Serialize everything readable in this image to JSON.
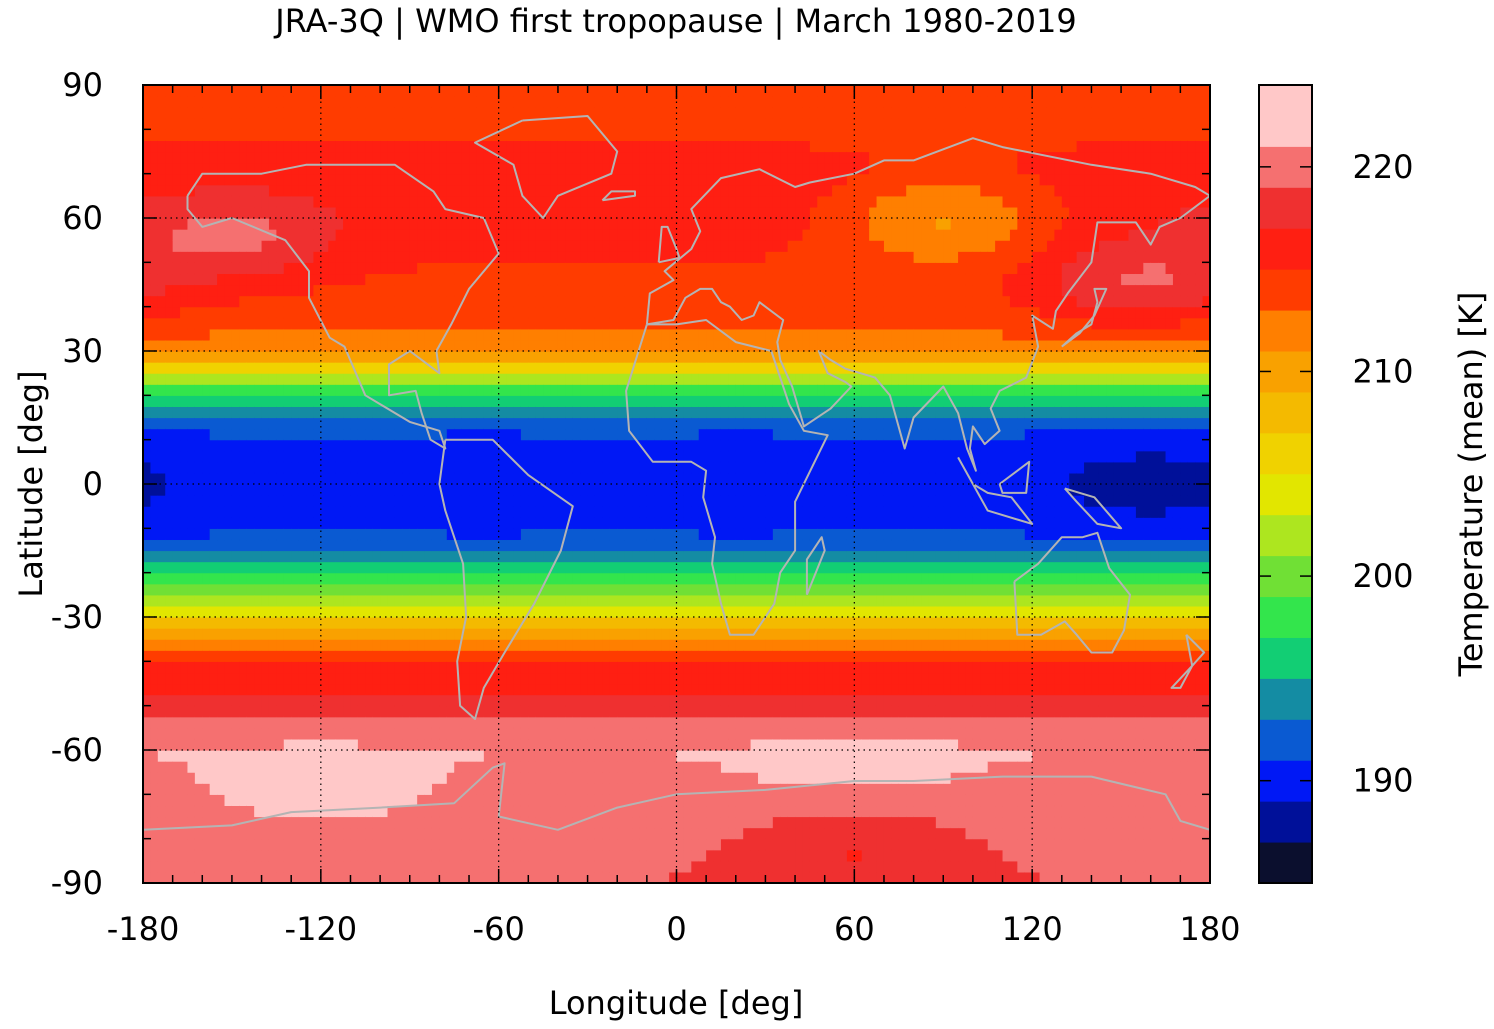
{
  "chart_data": {
    "type": "heatmap",
    "title": "JRA-3Q | WMO first tropopause | March 1980-2019",
    "xlabel": "Longitude [deg]",
    "ylabel": "Latitude [deg]",
    "colorbar_label": "Temperature (mean) [K]",
    "xlim": [
      -180,
      180
    ],
    "ylim": [
      -90,
      90
    ],
    "x_ticks": [
      -180,
      -120,
      -60,
      0,
      60,
      120,
      180
    ],
    "x_tick_labels": [
      "-180",
      "-120",
      "-60",
      "0",
      "60",
      "120",
      "180"
    ],
    "y_ticks": [
      -90,
      -60,
      -30,
      0,
      30,
      60,
      90
    ],
    "y_tick_labels": [
      "-90",
      "-60",
      "-30",
      "0",
      "30",
      "60",
      "90"
    ],
    "grid": true,
    "colorbar": {
      "min": 185,
      "max": 224,
      "levels": [
        185,
        187,
        189,
        191,
        193,
        195,
        197,
        199,
        201,
        203,
        205,
        207,
        209,
        211,
        213,
        215,
        217,
        219,
        221,
        223
      ],
      "colors": [
        "#0b0f2e",
        "#001099",
        "#0018f5",
        "#0a5ad2",
        "#148ca3",
        "#12ce74",
        "#33e54c",
        "#70e035",
        "#ade61f",
        "#e2e600",
        "#f0d200",
        "#f4ba00",
        "#f9a100",
        "#ff7f00",
        "#ff3c00",
        "#ff1f12",
        "#ef3030",
        "#f57070",
        "#ffc8c8"
      ],
      "ticks": [
        190,
        200,
        210,
        220
      ],
      "tick_labels": [
        "190",
        "200",
        "210",
        "220"
      ]
    },
    "zonal_mean_profile": {
      "lat": [
        -90,
        -80,
        -70,
        -60,
        -50,
        -40,
        -30,
        -25,
        -20,
        -15,
        -10,
        0,
        10,
        15,
        20,
        25,
        30,
        40,
        50,
        60,
        70,
        80,
        90
      ],
      "temperature": [
        219,
        219.5,
        220.5,
        221,
        218,
        215,
        206,
        201,
        196.5,
        193,
        190.5,
        190,
        190.5,
        193,
        196.5,
        203,
        212,
        214,
        215,
        216,
        216,
        214.5,
        214
      ]
    },
    "features": [
      {
        "lon": -65,
        "lat": 0,
        "temperature": 189.5
      },
      {
        "lon": 20,
        "lat": 0,
        "temperature": 189.5
      },
      {
        "lon": 160,
        "lat": 0,
        "temperature": 188
      },
      {
        "lon": -150,
        "lat": 55,
        "temperature": 219.5
      },
      {
        "lon": 155,
        "lat": 45,
        "temperature": 219
      },
      {
        "lon": 90,
        "lat": 60,
        "temperature": 211
      },
      {
        "lon": -120,
        "lat": -70,
        "temperature": 222
      },
      {
        "lon": 60,
        "lat": -62,
        "temperature": 222
      },
      {
        "lon": 60,
        "lat": -82,
        "temperature": 217
      }
    ]
  }
}
